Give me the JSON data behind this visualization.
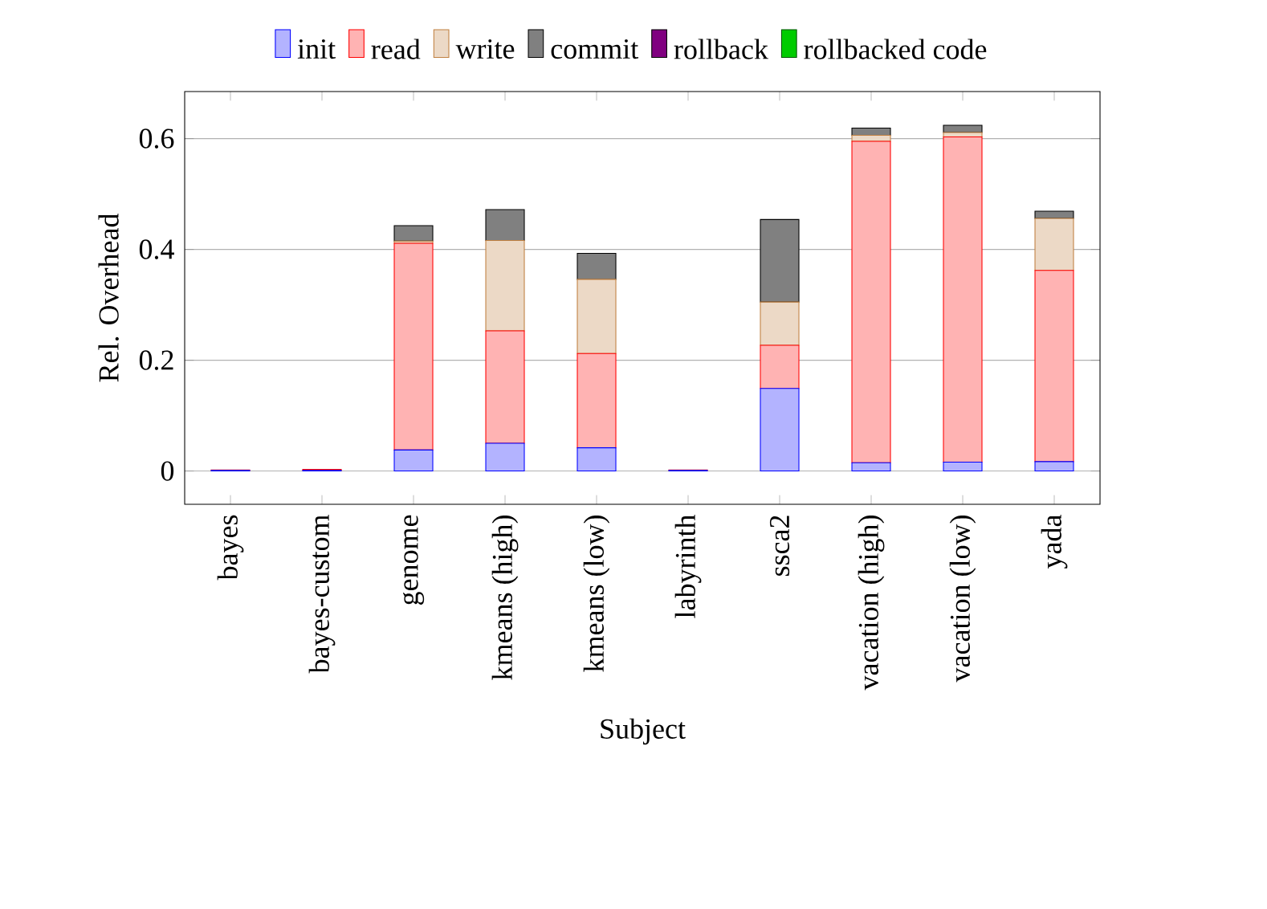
{
  "chart_data": {
    "type": "bar",
    "stacked": true,
    "xlabel": "Subject",
    "ylabel": "Rel. Overhead",
    "categories": [
      "bayes",
      "bayes-custom",
      "genome",
      "kmeans (high)",
      "kmeans (low)",
      "labyrinth",
      "ssca2",
      "vacation (high)",
      "vacation (low)",
      "yada"
    ],
    "series": [
      {
        "name": "init",
        "color": "#b3b3ff",
        "values": [
          0.001,
          0.001,
          0.038,
          0.05,
          0.042,
          0.001,
          0.149,
          0.015,
          0.016,
          0.017
        ]
      },
      {
        "name": "read",
        "color": "#ffb3b3",
        "values": [
          0.001,
          0.002,
          0.373,
          0.203,
          0.17,
          0.001,
          0.078,
          0.58,
          0.587,
          0.345
        ]
      },
      {
        "name": "write",
        "color": "#ecd9c6",
        "values": [
          0,
          0,
          0.004,
          0.163,
          0.134,
          0,
          0.078,
          0.011,
          0.008,
          0.094
        ]
      },
      {
        "name": "commit",
        "color": "#808080",
        "values": [
          0,
          0,
          0.028,
          0.056,
          0.047,
          0,
          0.149,
          0.013,
          0.013,
          0.013
        ]
      },
      {
        "name": "rollback",
        "color": "#800080",
        "values": [
          0,
          0,
          0,
          0,
          0,
          0,
          0,
          0,
          0,
          0
        ]
      },
      {
        "name": "rollbacked code",
        "color": "#00cc00",
        "values": [
          0,
          0,
          0,
          0,
          0,
          0,
          0,
          0,
          0,
          0
        ]
      }
    ],
    "ylim": [
      -0.06,
      0.685
    ],
    "yticks": [
      0,
      0.2,
      0.4,
      0.6
    ],
    "grid": "y",
    "legend": "top"
  }
}
